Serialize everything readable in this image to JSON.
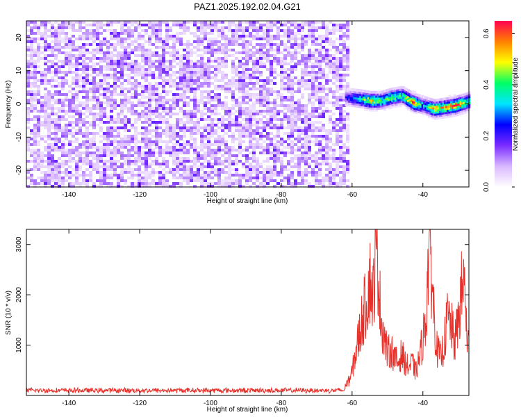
{
  "title": "PAZ1.2025.192.02.04.G21",
  "chart_data": [
    {
      "type": "heatmap",
      "xlabel": "Height of straight line (km)",
      "ylabel": "Frequency (Hz)",
      "xlim": [
        -152,
        -27
      ],
      "ylim": [
        -25,
        25
      ],
      "xticks": [
        -140,
        -120,
        -100,
        -80,
        -60,
        -40
      ],
      "yticks": [
        -20,
        -10,
        0,
        10,
        20
      ],
      "noise_region": {
        "x": [
          -152,
          -61
        ],
        "y": [
          -25,
          25
        ],
        "amplitude_range": [
          0.0,
          0.15
        ]
      },
      "signal_track": {
        "x": [
          -62,
          -58,
          -55,
          -52,
          -49,
          -46,
          -43,
          -40,
          -37,
          -34,
          -31,
          -28,
          -27
        ],
        "frequency": [
          2.0,
          1.5,
          1.0,
          1.0,
          2.0,
          2.5,
          0.5,
          -0.5,
          -1.5,
          -1.0,
          -0.5,
          0.5,
          1.0
        ],
        "amplitude": [
          0.2,
          0.35,
          0.5,
          0.4,
          0.45,
          0.4,
          0.6,
          0.3,
          0.55,
          0.5,
          0.6,
          0.45,
          0.35
        ]
      },
      "colorbar": {
        "label": "Normalized spectral amplitude",
        "range": [
          0.0,
          0.65
        ],
        "ticks": [
          "0.0",
          "0.2",
          "0.4",
          "0.6"
        ],
        "colors": [
          "#ffffff",
          "#d9b8ff",
          "#7a2cff",
          "#0000ff",
          "#00e5ff",
          "#00ff66",
          "#ffff00",
          "#ff8000",
          "#ff0050"
        ]
      },
      "grid": false
    },
    {
      "type": "line",
      "xlabel": "Height of straight line (km)",
      "ylabel": "SNR (10 * v/v)",
      "xlim": [
        -152,
        -27
      ],
      "ylim": [
        0,
        3300
      ],
      "xticks": [
        -140,
        -120,
        -100,
        -80,
        -60,
        -40
      ],
      "yticks": [
        1000,
        2000,
        3000
      ],
      "series": [
        {
          "color": "#e8302a",
          "baseline_region": {
            "x": [
              -152,
              -62
            ],
            "mean": 100,
            "jitter": 60
          },
          "x": [
            -62,
            -61,
            -60,
            -59,
            -58,
            -57,
            -56,
            -55,
            -54,
            -53.5,
            -53,
            -52.5,
            -52,
            -51,
            -50,
            -49,
            -48,
            -47,
            -46,
            -45,
            -44,
            -43,
            -42,
            -41,
            -40,
            -39,
            -38.5,
            -38,
            -37.5,
            -37,
            -36,
            -35,
            -34,
            -33,
            -32,
            -31,
            -30,
            -29,
            -28,
            -27.5,
            -27
          ],
          "values": [
            200,
            300,
            500,
            900,
            1300,
            1700,
            2000,
            2500,
            2100,
            2900,
            3200,
            2600,
            1800,
            1300,
            900,
            1000,
            800,
            700,
            900,
            700,
            600,
            700,
            500,
            800,
            1200,
            1800,
            2900,
            3300,
            2600,
            1900,
            1000,
            800,
            1100,
            1700,
            1500,
            1100,
            1600,
            2300,
            2400,
            900,
            1200
          ]
        }
      ],
      "grid": false
    }
  ]
}
